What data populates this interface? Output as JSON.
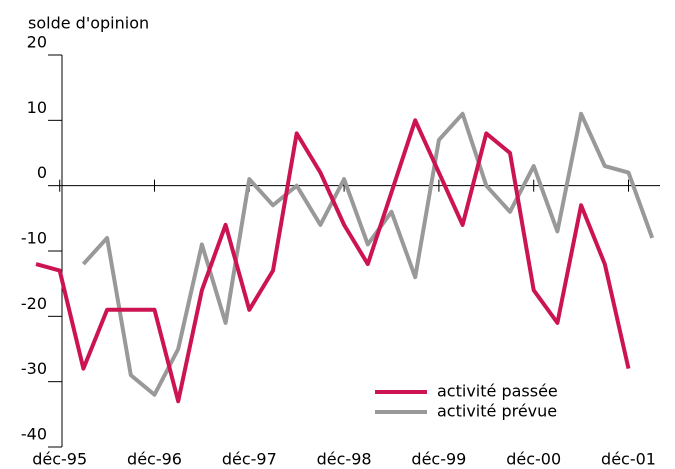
{
  "chart_data": {
    "type": "line",
    "y_axis_label": "solde d'opinion",
    "categories": [
      null,
      "déc-95",
      null,
      null,
      null,
      "déc-96",
      null,
      null,
      null,
      "déc-97",
      null,
      null,
      null,
      "déc-98",
      null,
      null,
      null,
      "déc-99",
      null,
      null,
      null,
      "déc-00",
      null,
      null,
      null,
      "déc-01",
      null
    ],
    "series": [
      {
        "name": "activité passée",
        "color": "#cc1451",
        "values": [
          -12,
          -13,
          -28,
          -19,
          -19,
          -19,
          -33,
          -16,
          -6,
          -19,
          -13,
          8,
          2,
          -6,
          -12,
          -1,
          10,
          2,
          -6,
          8,
          5,
          -16,
          -21,
          -3,
          -12,
          -28,
          null
        ]
      },
      {
        "name": "activité prévue",
        "color": "#999999",
        "values": [
          null,
          null,
          -12,
          -8,
          -29,
          -32,
          -25,
          -9,
          -21,
          1,
          -3,
          0,
          -6,
          1,
          -9,
          -4,
          -14,
          7,
          11,
          0,
          -4,
          3,
          -7,
          11,
          3,
          2,
          -8
        ]
      }
    ],
    "ylim": [
      -40,
      20
    ],
    "yticks": [
      -40,
      -30,
      -20,
      -10,
      0,
      10,
      20
    ],
    "legend": "lower right"
  }
}
